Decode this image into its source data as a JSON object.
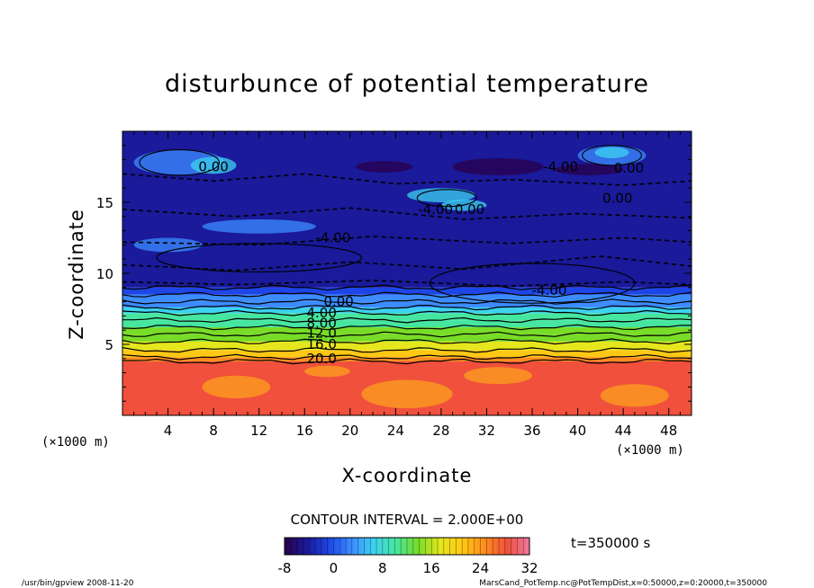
{
  "chart_data": {
    "type": "heatmap",
    "title": "disturbunce of potential temperature",
    "xlabel": "X-coordinate",
    "ylabel": "Z-coordinate",
    "x_unit_left": "(×1000 m)",
    "x_unit_right": "(×1000 m)",
    "xlim": [
      0,
      50
    ],
    "ylim": [
      0,
      20
    ],
    "x_ticks": [
      4,
      8,
      12,
      16,
      20,
      24,
      28,
      32,
      36,
      40,
      44,
      48
    ],
    "y_ticks": [
      5,
      10,
      15
    ],
    "contour_interval_text": "CONTOUR INTERVAL = 2.000E+00",
    "time_text": "t=350000 s",
    "colorbar": {
      "min": -8,
      "max": 32,
      "ticks": [
        -8,
        0,
        8,
        16,
        24,
        32
      ],
      "colors": [
        "#2a004a",
        "#1a1a9a",
        "#1e46e6",
        "#3c8cff",
        "#3cd2f0",
        "#46e6a0",
        "#78dc28",
        "#e6e61e",
        "#ffc814",
        "#ff8c1e",
        "#f0503c",
        "#f078a0"
      ]
    },
    "contour_labels": [
      {
        "text": "0.00",
        "x": 8,
        "z": 17.5
      },
      {
        "text": "-4.00",
        "x": 38.5,
        "z": 17.5
      },
      {
        "text": "0.00",
        "x": 44.5,
        "z": 17.4
      },
      {
        "text": "0.00",
        "x": 43.5,
        "z": 15.3
      },
      {
        "text": "-4.00",
        "x": 27.5,
        "z": 14.5
      },
      {
        "text": "0.00",
        "x": 30.5,
        "z": 14.5
      },
      {
        "text": "-4.00",
        "x": 18.5,
        "z": 12.5
      },
      {
        "text": "-4.00",
        "x": 37.5,
        "z": 8.8
      },
      {
        "text": "0.00",
        "x": 19,
        "z": 8.0
      },
      {
        "text": "4.00",
        "x": 17.5,
        "z": 7.2
      },
      {
        "text": "8.00",
        "x": 17.5,
        "z": 6.5
      },
      {
        "text": "12.0",
        "x": 17.5,
        "z": 5.8
      },
      {
        "text": "16.0",
        "x": 17.5,
        "z": 5.0
      },
      {
        "text": "20.0",
        "x": 17.5,
        "z": 4.0
      }
    ],
    "bands": [
      {
        "z0": 0.0,
        "z1": 3.8,
        "value": 26
      },
      {
        "z0": 3.8,
        "z1": 4.1,
        "value": 22
      },
      {
        "z0": 4.1,
        "z1": 4.6,
        "value": 19
      },
      {
        "z0": 4.6,
        "z1": 5.2,
        "value": 17
      },
      {
        "z0": 5.2,
        "z1": 5.7,
        "value": 15
      },
      {
        "z0": 5.7,
        "z1": 6.2,
        "value": 13
      },
      {
        "z0": 6.2,
        "z1": 6.7,
        "value": 11
      },
      {
        "z0": 6.7,
        "z1": 7.2,
        "value": 9
      },
      {
        "z0": 7.2,
        "z1": 7.6,
        "value": 7
      },
      {
        "z0": 7.6,
        "z1": 8.0,
        "value": 5
      },
      {
        "z0": 8.0,
        "z1": 8.5,
        "value": 3
      },
      {
        "z0": 8.5,
        "z1": 9.0,
        "value": 1
      },
      {
        "z0": 9.0,
        "z1": 20.0,
        "value": -2
      }
    ]
  },
  "footer": {
    "left": "/usr/bin/gpview   2008-11-20",
    "right": "MarsCand_PotTemp.nc@PotTempDist,x=0:50000,z=0:20000,t=350000"
  }
}
